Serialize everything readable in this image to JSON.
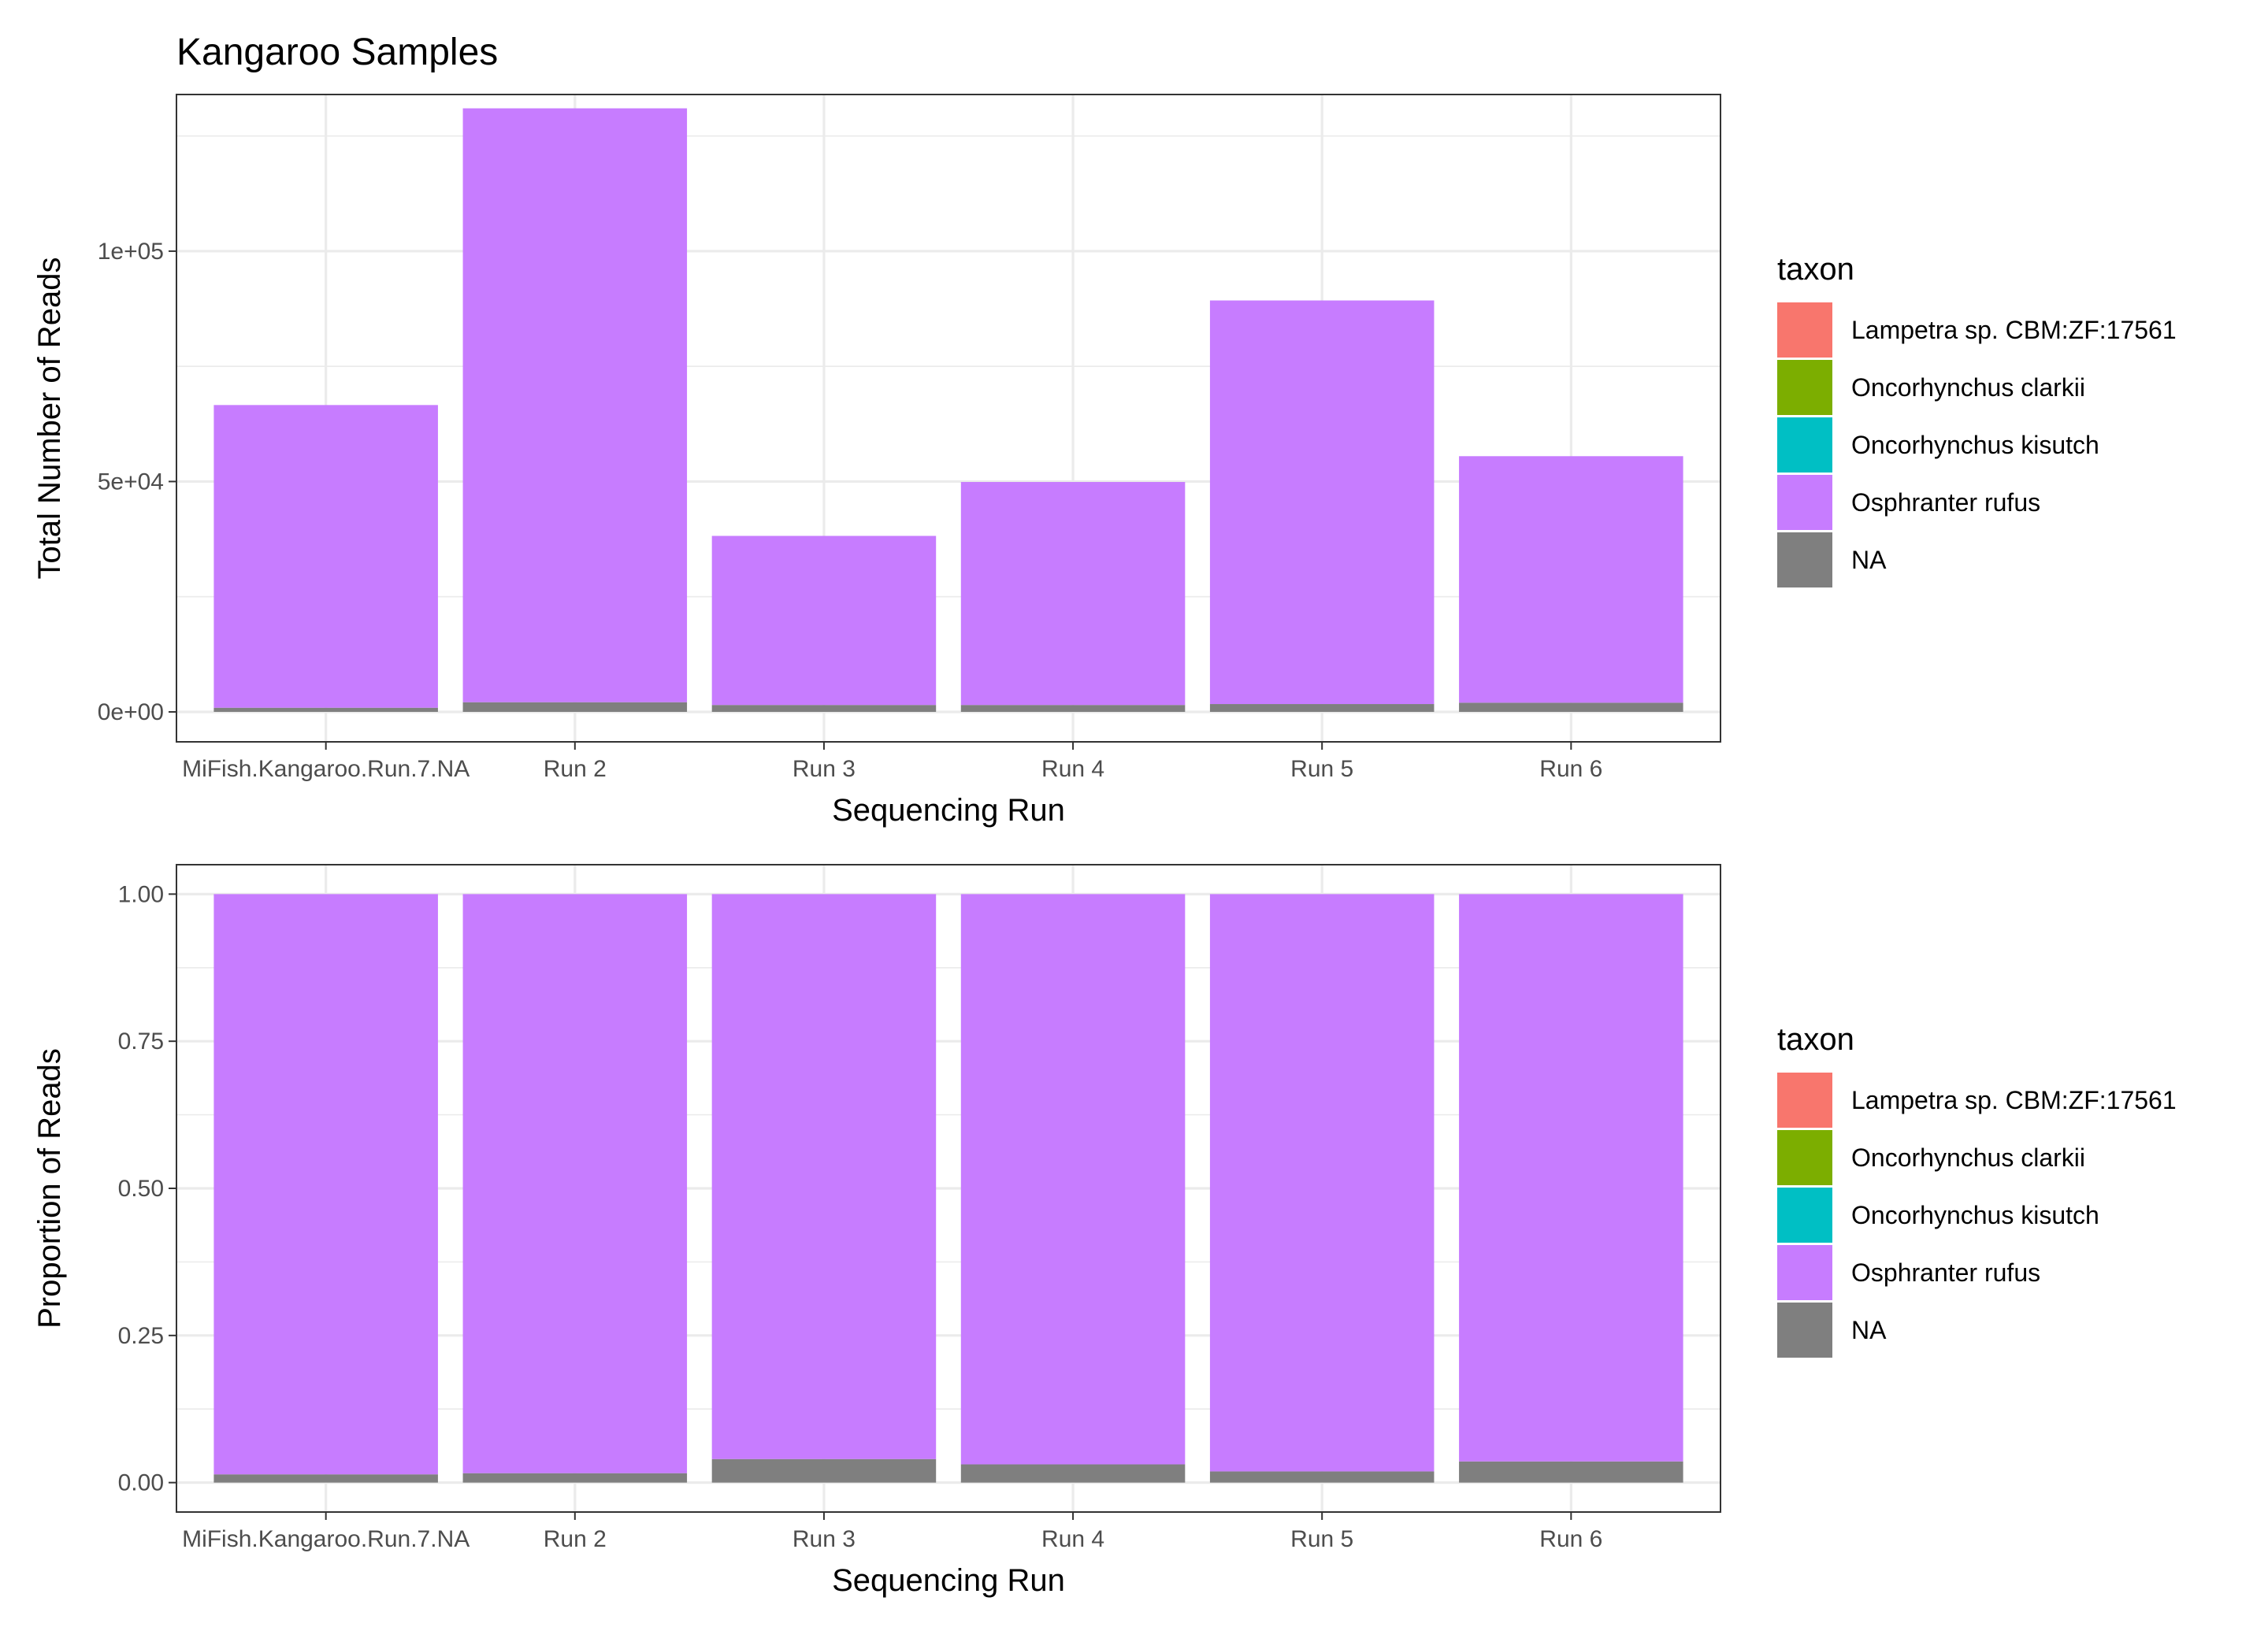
{
  "title": "Kangaroo Samples",
  "legend": {
    "title": "taxon",
    "placement": "right",
    "items": [
      {
        "label": "Lampetra sp. CBM:ZF:17561",
        "color": "#F8766D"
      },
      {
        "label": "Oncorhynchus clarkii",
        "color": "#7CAE00"
      },
      {
        "label": "Oncorhynchus kisutch",
        "color": "#00BFC4"
      },
      {
        "label": "Osphranter rufus",
        "color": "#C77CFF"
      },
      {
        "label": "NA",
        "color": "#7F7F7F"
      }
    ]
  },
  "chart_data": [
    {
      "type": "bar",
      "stacked": true,
      "xlabel": "Sequencing Run",
      "ylabel": "Total Number of Reads",
      "ylim": [
        -6500,
        134000
      ],
      "yticks": [
        0,
        50000,
        100000
      ],
      "ytick_labels": [
        "0e+00",
        "5e+04",
        "1e+05"
      ],
      "grid": true,
      "categories": [
        "MiFish.Kangaroo.Run.7.NA",
        "Run 2",
        "Run 3",
        "Run 4",
        "Run 5",
        "Run 6"
      ],
      "series": [
        {
          "name": "Lampetra sp. CBM:ZF:17561",
          "values": [
            0,
            0,
            0,
            0,
            0,
            0
          ]
        },
        {
          "name": "Oncorhynchus clarkii",
          "values": [
            0,
            0,
            0,
            0,
            0,
            0
          ]
        },
        {
          "name": "Oncorhynchus kisutch",
          "values": [
            0,
            0,
            0,
            0,
            0,
            0
          ]
        },
        {
          "name": "Osphranter rufus",
          "values": [
            65700,
            128900,
            36700,
            48400,
            87600,
            53500
          ]
        },
        {
          "name": "NA",
          "values": [
            900,
            2100,
            1500,
            1500,
            1700,
            2000
          ]
        }
      ]
    },
    {
      "type": "bar",
      "stacked": true,
      "xlabel": "Sequencing Run",
      "ylabel": "Proportion of Reads",
      "ylim": [
        -0.05,
        1.05
      ],
      "yticks": [
        0,
        0.25,
        0.5,
        0.75,
        1
      ],
      "ytick_labels": [
        "0.00",
        "0.25",
        "0.50",
        "0.75",
        "1.00"
      ],
      "grid": true,
      "categories": [
        "MiFish.Kangaroo.Run.7.NA",
        "Run 2",
        "Run 3",
        "Run 4",
        "Run 5",
        "Run 6"
      ],
      "series": [
        {
          "name": "Lampetra sp. CBM:ZF:17561",
          "values": [
            0,
            0,
            0,
            0,
            0,
            0
          ]
        },
        {
          "name": "Oncorhynchus clarkii",
          "values": [
            0,
            0,
            0,
            0,
            0,
            0
          ]
        },
        {
          "name": "Oncorhynchus kisutch",
          "values": [
            0,
            0,
            0,
            0,
            0,
            0
          ]
        },
        {
          "name": "Osphranter rufus",
          "values": [
            0.986,
            0.984,
            0.96,
            0.969,
            0.981,
            0.964
          ]
        },
        {
          "name": "NA",
          "values": [
            0.014,
            0.016,
            0.04,
            0.031,
            0.019,
            0.036
          ]
        }
      ]
    }
  ]
}
